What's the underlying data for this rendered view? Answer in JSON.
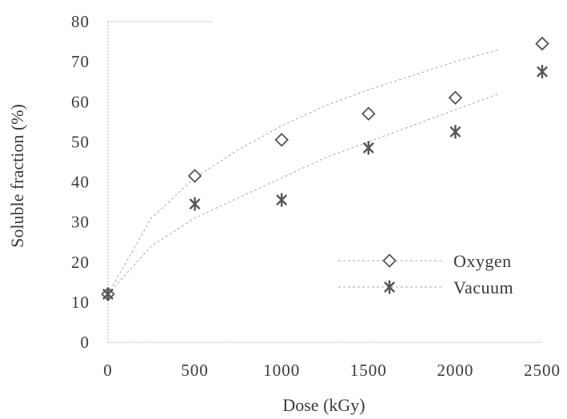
{
  "chart_data": {
    "type": "scatter",
    "title": "",
    "xlabel": "Dose (kGy)",
    "ylabel": "Soluble fraction (%)",
    "xlim": [
      0,
      2500
    ],
    "ylim": [
      0,
      80
    ],
    "x_ticks": [
      "0",
      "500",
      "1000",
      "1500",
      "2000",
      "2500"
    ],
    "y_ticks": [
      "0",
      "10",
      "20",
      "30",
      "40",
      "50",
      "60",
      "70",
      "80"
    ],
    "grid": false,
    "legend_position": "bottom-right",
    "series": [
      {
        "name": "Oxygen",
        "marker": "diamond",
        "color": "#555555",
        "x": [
          0,
          500,
          1000,
          1500,
          2000,
          2500
        ],
        "y": [
          12,
          41.5,
          50.5,
          57,
          61,
          74.5
        ],
        "trend": [
          12,
          31,
          41,
          48,
          54,
          59,
          63,
          66.5,
          70,
          73
        ]
      },
      {
        "name": "Vacuum",
        "marker": "asterisk",
        "color": "#555555",
        "x": [
          0,
          500,
          1000,
          1500,
          2000,
          2500
        ],
        "y": [
          12,
          34.5,
          35.5,
          48.5,
          52.5,
          67.5
        ],
        "trend": [
          12,
          24,
          31,
          36,
          41,
          46,
          50,
          54,
          58,
          62
        ]
      }
    ]
  }
}
